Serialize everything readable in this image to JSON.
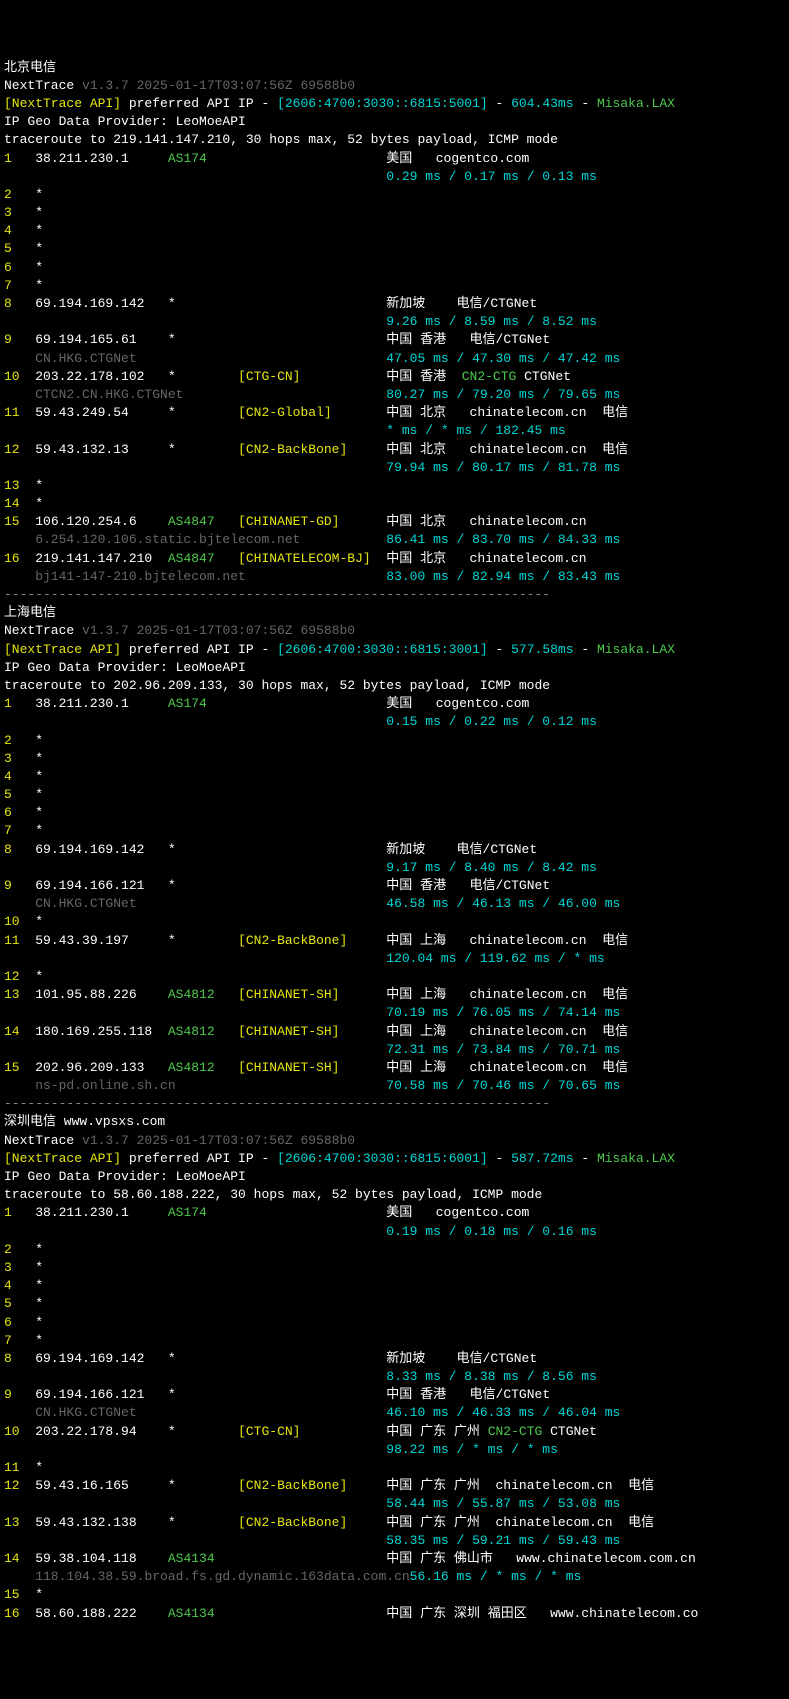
{
  "sections": [
    {
      "title": "北京电信",
      "header": {
        "prefix": "NextTrace ",
        "version": "v1.3.7 2025-01-17T03:07:56Z 69588b0",
        "api_label": "[NextTrace API] ",
        "api_text": "preferred API IP - ",
        "api_ip": "[2606:4700:3030::6815:5001]",
        "api_sep": " - ",
        "api_ms": "604.43ms",
        "api_sep2": " - ",
        "api_src": "Misaka.LAX",
        "geo": "IP Geo Data Provider: LeoMoeAPI",
        "route": "traceroute to 219.141.147.210, 30 hops max, 52 bytes payload, ICMP mode"
      },
      "hops": [
        {
          "n": "1",
          "ip": "38.211.230.1",
          "as": "AS174",
          "as_color": "green",
          "tag": "",
          "loc": "美国",
          "prov": "   cogentco.com",
          "prov_color": "white",
          "lat": "0.29 ms / 0.17 ms / 0.13 ms"
        },
        {
          "n": "2",
          "ip": "*"
        },
        {
          "n": "3",
          "ip": "*"
        },
        {
          "n": "4",
          "ip": "*"
        },
        {
          "n": "5",
          "ip": "*"
        },
        {
          "n": "6",
          "ip": "*"
        },
        {
          "n": "7",
          "ip": "*"
        },
        {
          "n": "8",
          "ip": "69.194.169.142",
          "as": "*",
          "as_color": "white",
          "tag": "",
          "loc": "新加坡",
          "prov": "    电信/CTGNet",
          "prov_color": "white",
          "lat": "9.26 ms / 8.59 ms / 8.52 ms"
        },
        {
          "n": "9",
          "ip": "69.194.165.61",
          "as": "*",
          "as_color": "white",
          "tag": "",
          "loc": "中国 香港",
          "prov": "   电信/CTGNet",
          "prov_color": "white",
          "lat": "47.05 ms / 47.30 ms / 47.42 ms",
          "rdns": "CN.HKG.CTGNet"
        },
        {
          "n": "10",
          "ip": "203.22.178.102",
          "as": "*",
          "as_color": "white",
          "tag": "[CTG-CN]",
          "loc": "中国 香港",
          "prov": "  CN2-CTG",
          "prov_color": "green",
          "extra": " CTGNet",
          "lat": "80.27 ms / 79.20 ms / 79.65 ms",
          "rdns": "CTCN2.CN.HKG.CTGNet"
        },
        {
          "n": "11",
          "ip": "59.43.249.54",
          "as": "*",
          "as_color": "white",
          "tag": "[CN2-Global]",
          "loc": "中国 北京",
          "prov": "   chinatelecom.cn  电信",
          "prov_color": "white",
          "lat": "* ms / * ms / 182.45 ms"
        },
        {
          "n": "12",
          "ip": "59.43.132.13",
          "as": "*",
          "as_color": "white",
          "tag": "[CN2-BackBone]",
          "loc": "中国 北京",
          "prov": "   chinatelecom.cn  电信",
          "prov_color": "white",
          "lat": "79.94 ms / 80.17 ms / 81.78 ms"
        },
        {
          "n": "13",
          "ip": "*"
        },
        {
          "n": "14",
          "ip": "*"
        },
        {
          "n": "15",
          "ip": "106.120.254.6",
          "as": "AS4847",
          "as_color": "green",
          "tag": "[CHINANET-GD]",
          "loc": "中国 北京",
          "prov": "   chinatelecom.cn",
          "prov_color": "white",
          "lat": "86.41 ms / 83.70 ms / 84.33 ms",
          "rdns": "6.254.120.106.static.bjtelecom.net"
        },
        {
          "n": "16",
          "ip": "219.141.147.210",
          "as": "AS4847",
          "as_color": "green",
          "tag": "[CHINATELECOM-BJ]",
          "loc": "中国 北京",
          "prov": "   chinatelecom.cn",
          "prov_color": "white",
          "lat": "83.00 ms / 82.94 ms / 83.43 ms",
          "rdns": "bj141-147-210.bjtelecom.net"
        }
      ]
    },
    {
      "title": "上海电信",
      "header": {
        "prefix": "NextTrace ",
        "version": "v1.3.7 2025-01-17T03:07:56Z 69588b0",
        "api_label": "[NextTrace API] ",
        "api_text": "preferred API IP - ",
        "api_ip": "[2606:4700:3030::6815:3001]",
        "api_sep": " - ",
        "api_ms": "577.58ms",
        "api_sep2": " - ",
        "api_src": "Misaka.LAX",
        "geo": "IP Geo Data Provider: LeoMoeAPI",
        "route": "traceroute to 202.96.209.133, 30 hops max, 52 bytes payload, ICMP mode"
      },
      "hops": [
        {
          "n": "1",
          "ip": "38.211.230.1",
          "as": "AS174",
          "as_color": "green",
          "tag": "",
          "loc": "美国",
          "prov": "   cogentco.com",
          "prov_color": "white",
          "lat": "0.15 ms / 0.22 ms / 0.12 ms"
        },
        {
          "n": "2",
          "ip": "*"
        },
        {
          "n": "3",
          "ip": "*"
        },
        {
          "n": "4",
          "ip": "*"
        },
        {
          "n": "5",
          "ip": "*"
        },
        {
          "n": "6",
          "ip": "*"
        },
        {
          "n": "7",
          "ip": "*"
        },
        {
          "n": "8",
          "ip": "69.194.169.142",
          "as": "*",
          "as_color": "white",
          "tag": "",
          "loc": "新加坡",
          "prov": "    电信/CTGNet",
          "prov_color": "white",
          "lat": "9.17 ms / 8.40 ms / 8.42 ms"
        },
        {
          "n": "9",
          "ip": "69.194.166.121",
          "as": "*",
          "as_color": "white",
          "tag": "",
          "loc": "中国 香港",
          "prov": "   电信/CTGNet",
          "prov_color": "white",
          "lat": "46.58 ms / 46.13 ms / 46.00 ms",
          "rdns": "CN.HKG.CTGNet"
        },
        {
          "n": "10",
          "ip": "*"
        },
        {
          "n": "11",
          "ip": "59.43.39.197",
          "as": "*",
          "as_color": "white",
          "tag": "[CN2-BackBone]",
          "loc": "中国 上海",
          "prov": "   chinatelecom.cn  电信",
          "prov_color": "white",
          "lat": "120.04 ms / 119.62 ms / * ms"
        },
        {
          "n": "12",
          "ip": "*"
        },
        {
          "n": "13",
          "ip": "101.95.88.226",
          "as": "AS4812",
          "as_color": "green",
          "tag": "[CHINANET-SH]",
          "loc": "中国 上海",
          "prov": "   chinatelecom.cn  电信",
          "prov_color": "white",
          "lat": "70.19 ms / 76.05 ms / 74.14 ms"
        },
        {
          "n": "14",
          "ip": "180.169.255.118",
          "as": "AS4812",
          "as_color": "green",
          "tag": "[CHINANET-SH]",
          "loc": "中国 上海",
          "prov": "   chinatelecom.cn  电信",
          "prov_color": "white",
          "lat": "72.31 ms / 73.84 ms / 70.71 ms"
        },
        {
          "n": "15",
          "ip": "202.96.209.133",
          "as": "AS4812",
          "as_color": "green",
          "tag": "[CHINANET-SH]",
          "loc": "中国 上海",
          "prov": "   chinatelecom.cn  电信",
          "prov_color": "white",
          "lat": "70.58 ms / 70.46 ms / 70.65 ms",
          "rdns": "ns-pd.online.sh.cn"
        }
      ]
    },
    {
      "title": "深圳电信 www.vpsxs.com",
      "header": {
        "prefix": "NextTrace ",
        "version": "v1.3.7 2025-01-17T03:07:56Z 69588b0",
        "api_label": "[NextTrace API] ",
        "api_text": "preferred API IP - ",
        "api_ip": "[2606:4700:3030::6815:6001]",
        "api_sep": " - ",
        "api_ms": "587.72ms",
        "api_sep2": " - ",
        "api_src": "Misaka.LAX",
        "geo": "IP Geo Data Provider: LeoMoeAPI",
        "route": "traceroute to 58.60.188.222, 30 hops max, 52 bytes payload, ICMP mode"
      },
      "hops": [
        {
          "n": "1",
          "ip": "38.211.230.1",
          "as": "AS174",
          "as_color": "green",
          "tag": "",
          "loc": "美国",
          "prov": "   cogentco.com",
          "prov_color": "white",
          "lat": "0.19 ms / 0.18 ms / 0.16 ms"
        },
        {
          "n": "2",
          "ip": "*"
        },
        {
          "n": "3",
          "ip": "*"
        },
        {
          "n": "4",
          "ip": "*"
        },
        {
          "n": "5",
          "ip": "*"
        },
        {
          "n": "6",
          "ip": "*"
        },
        {
          "n": "7",
          "ip": "*"
        },
        {
          "n": "8",
          "ip": "69.194.169.142",
          "as": "*",
          "as_color": "white",
          "tag": "",
          "loc": "新加坡",
          "prov": "    电信/CTGNet",
          "prov_color": "white",
          "lat": "8.33 ms / 8.38 ms / 8.56 ms"
        },
        {
          "n": "9",
          "ip": "69.194.166.121",
          "as": "*",
          "as_color": "white",
          "tag": "",
          "loc": "中国 香港",
          "prov": "   电信/CTGNet",
          "prov_color": "white",
          "lat": "46.10 ms / 46.33 ms / 46.04 ms",
          "rdns": "CN.HKG.CTGNet"
        },
        {
          "n": "10",
          "ip": "203.22.178.94",
          "as": "*",
          "as_color": "white",
          "tag": "[CTG-CN]",
          "loc": "中国 广东 广州",
          "prov": " CN2-CTG",
          "prov_color": "green",
          "extra": " CTGNet",
          "lat": "98.22 ms / * ms / * ms"
        },
        {
          "n": "11",
          "ip": "*"
        },
        {
          "n": "12",
          "ip": "59.43.16.165",
          "as": "*",
          "as_color": "white",
          "tag": "[CN2-BackBone]",
          "loc": "中国 广东 广州",
          "prov": "  chinatelecom.cn  电信",
          "prov_color": "white",
          "lat": "58.44 ms / 55.87 ms / 53.08 ms"
        },
        {
          "n": "13",
          "ip": "59.43.132.138",
          "as": "*",
          "as_color": "white",
          "tag": "[CN2-BackBone]",
          "loc": "中国 广东 广州",
          "prov": "  chinatelecom.cn  电信",
          "prov_color": "white",
          "lat": "58.35 ms / 59.21 ms / 59.43 ms"
        },
        {
          "n": "14",
          "ip": "59.38.104.118",
          "as": "AS4134",
          "as_color": "green",
          "tag": "",
          "loc": "中国 广东 佛山市",
          "prov": "   www.chinatelecom.com.cn",
          "prov_color": "white",
          "lat_inline": true,
          "rdns": "118.104.38.59.broad.fs.gd.dynamic.163data.com.cn",
          "lat": "56.16 ms / * ms / * ms"
        },
        {
          "n": "15",
          "ip": "*"
        },
        {
          "n": "16",
          "ip": "58.60.188.222",
          "as": "AS4134",
          "as_color": "green",
          "tag": "",
          "loc": "中国 广东 深圳 福田区",
          "prov": "   www.chinatelecom.co",
          "prov_color": "white"
        }
      ]
    }
  ],
  "divider": "----------------------------------------------------------------------"
}
